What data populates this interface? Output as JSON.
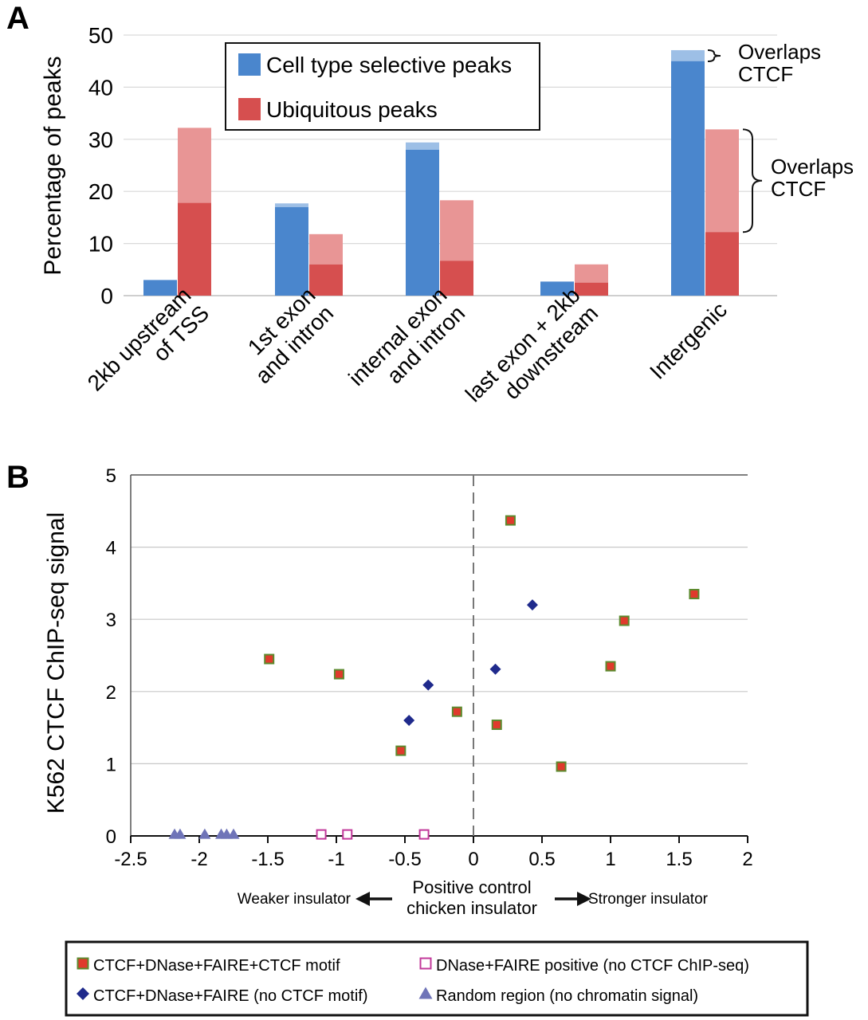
{
  "panel_a": {
    "label": "A",
    "chart_data": {
      "type": "bar",
      "stacked_overlay": true,
      "categories": [
        "2kb upstream\nof TSS",
        "1st exon\nand intron",
        "internal exon\nand intron",
        "last exon + 2kb\ndownstream",
        "Intergenic"
      ],
      "series": [
        {
          "name": "Cell type selective peaks",
          "values": [
            3,
            17,
            28,
            2.7,
            45
          ],
          "overlaps_ctcf_totals": [
            3,
            17.7,
            29.4,
            2.7,
            47.1
          ],
          "color": "#4a86cd",
          "overlap_color": "#9dbfe6"
        },
        {
          "name": "Ubiquitous peaks",
          "values": [
            17.8,
            6,
            6.7,
            2.5,
            12.2
          ],
          "overlaps_ctcf_totals": [
            32.2,
            11.8,
            18.3,
            6,
            31.9
          ],
          "color": "#d64f4f",
          "overlap_color": "#e89595"
        }
      ],
      "ylabel": "Percentage of peaks",
      "ylim": [
        0,
        50
      ],
      "yticks": [
        0,
        10,
        20,
        30,
        40,
        50
      ],
      "annotations": [
        {
          "text": "Overlaps\nCTCF",
          "category": "Intergenic",
          "series": "Cell type selective peaks"
        },
        {
          "text": "Overlaps\nCTCF",
          "category": "Intergenic",
          "series": "Ubiquitous peaks"
        }
      ],
      "legend_position": "top-center"
    }
  },
  "panel_b": {
    "label": "B",
    "chart_data": {
      "type": "scatter",
      "ylabel": "K562 CTCF ChIP-seq signal",
      "xlim": [
        -2.5,
        2
      ],
      "ylim": [
        0,
        5
      ],
      "xticks": [
        -2.5,
        -2,
        -1.5,
        -1,
        -0.5,
        0,
        0.5,
        1,
        1.5,
        2
      ],
      "yticks": [
        0,
        1,
        2,
        3,
        4,
        5
      ],
      "series": [
        {
          "name": "CTCF+DNase+FAIRE+CTCF motif",
          "marker": "square",
          "color": "#e03a2c",
          "edge": "#5c8a2e",
          "points": [
            [
              -1.49,
              2.45
            ],
            [
              -0.98,
              2.24
            ],
            [
              -0.53,
              1.18
            ],
            [
              -0.12,
              1.72
            ],
            [
              0.17,
              1.54
            ],
            [
              0.27,
              4.37
            ],
            [
              0.64,
              0.96
            ],
            [
              1.0,
              2.35
            ],
            [
              1.1,
              2.98
            ],
            [
              1.61,
              3.35
            ]
          ]
        },
        {
          "name": "CTCF+DNase+FAIRE (no CTCF motif)",
          "marker": "diamond",
          "color": "#1f2a8c",
          "points": [
            [
              -0.47,
              1.6
            ],
            [
              -0.33,
              2.09
            ],
            [
              0.16,
              2.31
            ],
            [
              0.43,
              3.2
            ]
          ]
        },
        {
          "name": "DNase+FAIRE positive (no CTCF ChIP-seq)",
          "marker": "open-square",
          "color": "#c2389a",
          "points": [
            [
              -1.11,
              0.01
            ],
            [
              -0.92,
              0.01
            ],
            [
              -0.36,
              0.01
            ]
          ]
        },
        {
          "name": "Random region (no chromatin signal)",
          "marker": "triangle",
          "color": "#6f74b8",
          "points": [
            [
              -2.18,
              0.01
            ],
            [
              -2.14,
              0.01
            ],
            [
              -1.96,
              0.01
            ],
            [
              -1.84,
              0.01
            ],
            [
              -1.8,
              0.01
            ],
            [
              -1.75,
              0.01
            ]
          ]
        }
      ],
      "zero_line": "dashed",
      "x_annotation": {
        "left": "Weaker insulator",
        "center": "Positive control\nchicken insulator",
        "right": "Stronger insulator"
      },
      "legend_position": "bottom"
    }
  }
}
